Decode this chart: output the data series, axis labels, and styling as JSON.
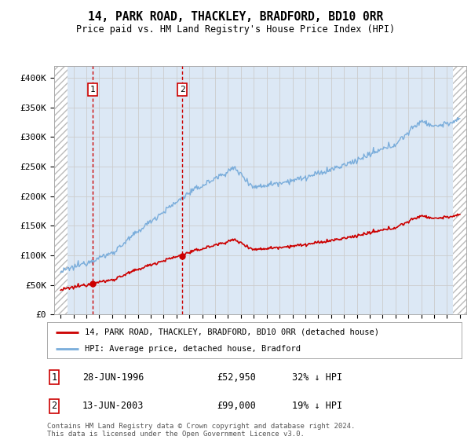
{
  "title": "14, PARK ROAD, THACKLEY, BRADFORD, BD10 0RR",
  "subtitle": "Price paid vs. HM Land Registry's House Price Index (HPI)",
  "legend_line1": "14, PARK ROAD, THACKLEY, BRADFORD, BD10 0RR (detached house)",
  "legend_line2": "HPI: Average price, detached house, Bradford",
  "footnote": "Contains HM Land Registry data © Crown copyright and database right 2024.\nThis data is licensed under the Open Government Licence v3.0.",
  "sale1_date": "28-JUN-1996",
  "sale1_price": 52950,
  "sale1_label": "1",
  "sale1_pct": "32% ↓ HPI",
  "sale2_date": "13-JUN-2003",
  "sale2_price": 99000,
  "sale2_label": "2",
  "sale2_pct": "19% ↓ HPI",
  "ylim": [
    0,
    420000
  ],
  "yticks": [
    0,
    50000,
    100000,
    150000,
    200000,
    250000,
    300000,
    350000,
    400000
  ],
  "ytick_labels": [
    "£0",
    "£50K",
    "£100K",
    "£150K",
    "£200K",
    "£250K",
    "£300K",
    "£350K",
    "£400K"
  ],
  "grid_color": "#cccccc",
  "line_color_red": "#cc0000",
  "line_color_blue": "#7aaddb",
  "sale_marker_color": "#cc0000",
  "vline_color": "#cc0000",
  "box_color": "#cc0000",
  "background_plot": "#dce8f5",
  "hatch_color": "#bbbbbb",
  "sale1_x": 1996.49,
  "sale2_x": 2003.45,
  "xmin": 1993.5,
  "xmax": 2025.5,
  "hatch_left_end": 1994.55,
  "hatch_right_start": 2024.45
}
